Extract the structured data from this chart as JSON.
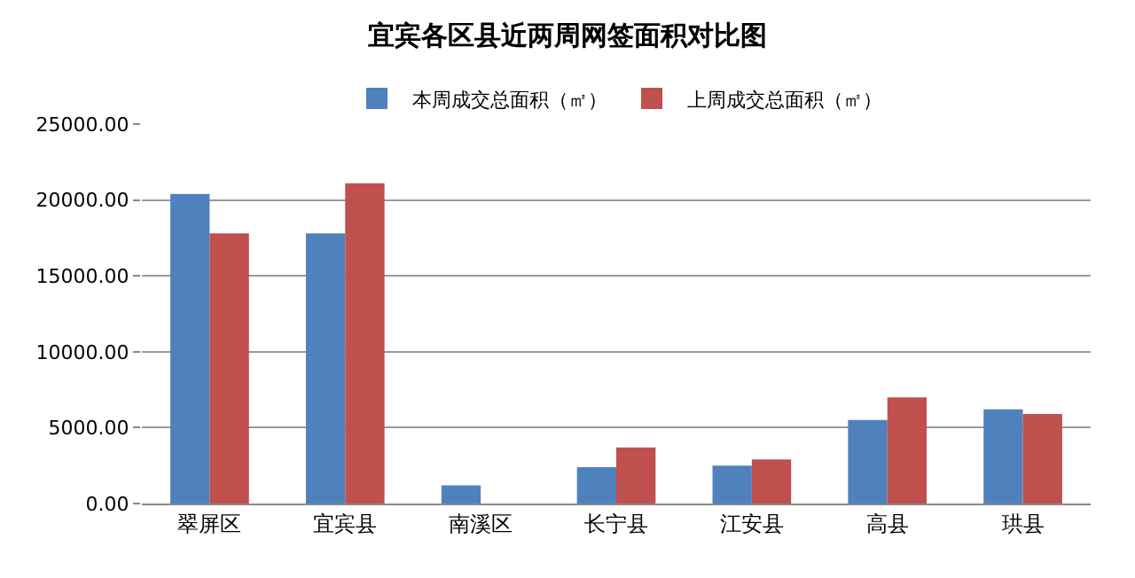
{
  "chart_data": {
    "type": "bar",
    "title": "宜宾各区县近两周网签面积对比图",
    "categories": [
      "翠屏区",
      "宜宾县",
      "南溪区",
      "长宁县",
      "江安县",
      "高县",
      "珙县"
    ],
    "series": [
      {
        "name": "本周成交总面积（㎡）",
        "color": "#4f81bd",
        "values": [
          20400,
          17800,
          1200,
          2400,
          2500,
          5500,
          6200
        ]
      },
      {
        "name": "上周成交总面积（㎡）",
        "color": "#c0504d",
        "values": [
          17800,
          21100,
          0,
          3700,
          2900,
          7000,
          5900
        ]
      }
    ],
    "ylim": [
      0,
      25000
    ],
    "yticks": [
      {
        "value": 0,
        "label": "0.00"
      },
      {
        "value": 5000,
        "label": "5000.00"
      },
      {
        "value": 10000,
        "label": "10000.00"
      },
      {
        "value": 15000,
        "label": "15000.00"
      },
      {
        "value": 20000,
        "label": "20000.00"
      },
      {
        "value": 25000,
        "label": "25000.00"
      }
    ],
    "grid": "y",
    "legend": "top"
  }
}
